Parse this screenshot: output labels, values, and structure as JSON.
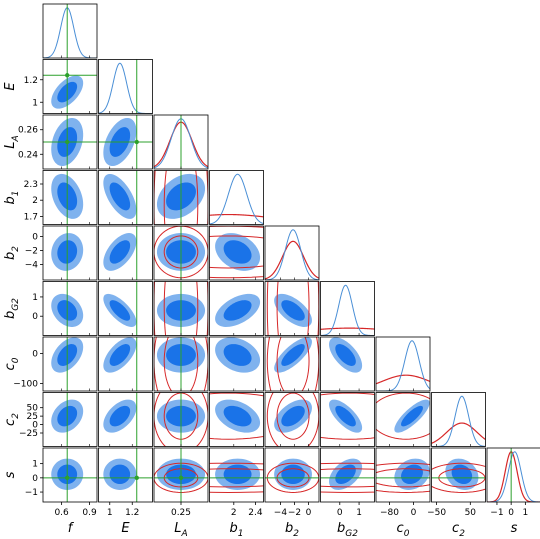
{
  "chart_data": {
    "type": "corner",
    "parameters": [
      {
        "label": "f",
        "mean": 0.66,
        "sd": 0.07,
        "lim": [
          0.4,
          0.98
        ],
        "ticks": [
          0.6,
          0.9
        ],
        "truth": 0.66,
        "overlay": null
      },
      {
        "label": "E",
        "mean": 1.09,
        "sd": 0.06,
        "lim": [
          0.9,
          1.38
        ],
        "ticks": [
          1.0,
          1.2
        ],
        "truth": 1.24,
        "overlay": null
      },
      {
        "label": "L_A",
        "mean": 0.25,
        "sd": 0.008,
        "lim": [
          0.228,
          0.272
        ],
        "ticks": [
          0.24,
          0.26
        ],
        "xticks": [
          0.25
        ],
        "truth": 0.25,
        "overlay": {
          "mean": 0.25,
          "sd": 0.009
        }
      },
      {
        "label": "b_1",
        "mean": 2.07,
        "sd": 0.17,
        "lim": [
          1.55,
          2.55
        ],
        "ticks": [
          1.7,
          2.0,
          2.3
        ],
        "xticks": [
          2.0,
          2.4
        ],
        "truth": null,
        "overlay": {
          "mean": 1.9,
          "sd": 0.9
        }
      },
      {
        "label": "b_2",
        "mean": -2.2,
        "sd": 1.1,
        "lim": [
          -6.2,
          1.5
        ],
        "ticks": [
          -4,
          -2,
          0
        ],
        "xticks": [
          -4,
          -2,
          0
        ],
        "truth": null,
        "overlay": {
          "mean": -2.2,
          "sd": 1.5
        }
      },
      {
        "label": "b_{G2}",
        "mean": 0.3,
        "sd": 0.35,
        "lim": [
          -1.0,
          1.8
        ],
        "ticks": [
          0,
          1
        ],
        "truth": null,
        "overlay": {
          "mean": 0.5,
          "sd": 2.5
        }
      },
      {
        "label": "c_0",
        "mean": -5,
        "sd": 24,
        "lim": [
          -125,
          55
        ],
        "ticks": [
          -100,
          0
        ],
        "xticks": [
          -80,
          0
        ],
        "truth": null,
        "overlay": {
          "mean": -25,
          "sd": 80
        }
      },
      {
        "label": "c_2",
        "mean": 25,
        "sd": 20,
        "lim": [
          -65,
          95
        ],
        "ticks": [
          -25,
          0,
          25,
          50
        ],
        "xticks": [
          -50,
          50
        ],
        "truth": null,
        "overlay": {
          "mean": 25,
          "sd": 45
        }
      },
      {
        "label": "s",
        "mean": 0.25,
        "sd": 0.45,
        "lim": [
          -1.7,
          2.1
        ],
        "ticks": [
          -1,
          0,
          1
        ],
        "truth": 0.0,
        "overlay": {
          "mean": 0.0,
          "sd": 0.42
        }
      }
    ],
    "correlations": [
      {
        "i": 1,
        "j": 0,
        "r": 0.55
      },
      {
        "i": 2,
        "j": 0,
        "r": 0.3
      },
      {
        "i": 2,
        "j": 1,
        "r": 0.45
      },
      {
        "i": 3,
        "j": 0,
        "r": -0.35
      },
      {
        "i": 3,
        "j": 1,
        "r": -0.6
      },
      {
        "i": 3,
        "j": 2,
        "r": 0.35
      },
      {
        "i": 4,
        "j": 0,
        "r": 0.1
      },
      {
        "i": 4,
        "j": 1,
        "r": 0.55
      },
      {
        "i": 4,
        "j": 3,
        "r": -0.3
      },
      {
        "i": 5,
        "j": 0,
        "r": -0.3
      },
      {
        "i": 5,
        "j": 1,
        "r": -0.7
      },
      {
        "i": 5,
        "j": 3,
        "r": 0.5
      },
      {
        "i": 5,
        "j": 4,
        "r": -0.6
      },
      {
        "i": 6,
        "j": 0,
        "r": 0.45
      },
      {
        "i": 6,
        "j": 1,
        "r": 0.6
      },
      {
        "i": 6,
        "j": 3,
        "r": -0.3
      },
      {
        "i": 6,
        "j": 4,
        "r": 0.75
      },
      {
        "i": 6,
        "j": 5,
        "r": -0.6
      },
      {
        "i": 7,
        "j": 0,
        "r": 0.3
      },
      {
        "i": 7,
        "j": 1,
        "r": 0.5
      },
      {
        "i": 7,
        "j": 3,
        "r": -0.4
      },
      {
        "i": 7,
        "j": 4,
        "r": 0.5
      },
      {
        "i": 7,
        "j": 5,
        "r": -0.7
      },
      {
        "i": 7,
        "j": 6,
        "r": 0.8
      },
      {
        "i": 8,
        "j": 5,
        "r": 0.45
      },
      {
        "i": 8,
        "j": 6,
        "r": 0.2
      },
      {
        "i": 8,
        "j": 7,
        "r": -0.2
      }
    ],
    "contour_levels": [
      0.68,
      0.95
    ],
    "colors": {
      "inner_fill": "#1a73e8",
      "outer_fill": "#7fb2ee",
      "marginal_line": "#4a8fd6",
      "overlay_contour": "#d62728",
      "truth_line": "#2ca02c",
      "frame": "#000000"
    }
  }
}
